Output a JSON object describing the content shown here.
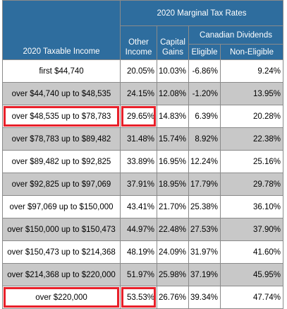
{
  "header": {
    "title": "2020 Marginal Tax Rates",
    "taxable_income": "2020 Taxable Income",
    "other_income": [
      "Other",
      "Income"
    ],
    "capital_gains": [
      "Capital",
      "Gains"
    ],
    "canadian_dividends": "Canadian Dividends",
    "eligible": "Eligible",
    "non_eligible": "Non-Eligible"
  },
  "rows": [
    {
      "income": "first $44,740",
      "other": "20.05%",
      "capital": "10.03%",
      "eligible": "-6.86%",
      "non_eligible": "9.24%",
      "shade": "white"
    },
    {
      "income": "over $44,740 up to $48,535",
      "other": "24.15%",
      "capital": "12.08%",
      "eligible": "-1.20%",
      "non_eligible": "13.95%",
      "shade": "grey"
    },
    {
      "income": "over $48,535 up to $78,783",
      "other": "29.65%",
      "capital": "14.83%",
      "eligible": "6.39%",
      "non_eligible": "20.28%",
      "shade": "white",
      "highlight": true
    },
    {
      "income": "over $78,783 up to $89,482",
      "other": "31.48%",
      "capital": "15.74%",
      "eligible": "8.92%",
      "non_eligible": "22.38%",
      "shade": "grey"
    },
    {
      "income": "over $89,482 up to $92,825",
      "other": "33.89%",
      "capital": "16.95%",
      "eligible": "12.24%",
      "non_eligible": "25.16%",
      "shade": "white"
    },
    {
      "income": "over $92,825 up to $97,069",
      "other": "37.91%",
      "capital": "18.95%",
      "eligible": "17.79%",
      "non_eligible": "29.78%",
      "shade": "grey"
    },
    {
      "income": "over $97,069 up to $150,000",
      "other": "43.41%",
      "capital": "21.70%",
      "eligible": "25.38%",
      "non_eligible": "36.10%",
      "shade": "white"
    },
    {
      "income": "over $150,000 up to $150,473",
      "other": "44.97%",
      "capital": "22.48%",
      "eligible": "27.53%",
      "non_eligible": "37.90%",
      "shade": "grey"
    },
    {
      "income": "over $150,473 up to $214,368",
      "other": "48.19%",
      "capital": "24.09%",
      "eligible": "31.97%",
      "non_eligible": "41.60%",
      "shade": "white"
    },
    {
      "income": "over $214,368 up to $220,000",
      "other": "51.97%",
      "capital": "25.98%",
      "eligible": "37.19%",
      "non_eligible": "45.95%",
      "shade": "grey"
    },
    {
      "income": "over $220,000",
      "other": "53.53%",
      "capital": "26.76%",
      "eligible": "39.34%",
      "non_eligible": "47.74%",
      "shade": "white",
      "highlight": true
    }
  ],
  "colors": {
    "header_bg": "#2e6d9e",
    "header_text": "#ffffff",
    "row_grey": "#c8c8c8",
    "row_white": "#ffffff",
    "highlight_border": "#e8202a"
  }
}
